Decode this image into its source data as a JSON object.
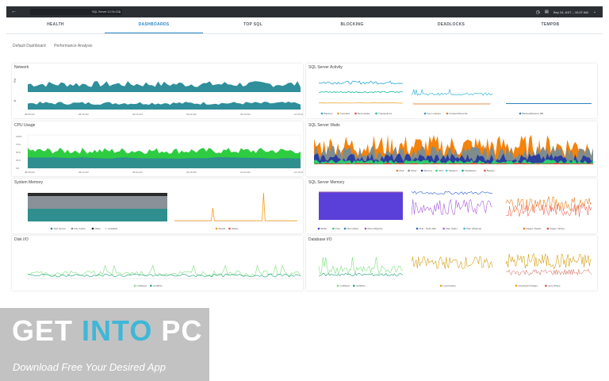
{
  "header": {
    "back_icon": "back-arrow-icon",
    "server_selector": "SQL Server 12.04.023",
    "date_range": "Sep 24, 8:07 – 10:07 AM",
    "time_icon": "clock-icon",
    "calendar_icon": "calendar-icon"
  },
  "tabs": [
    {
      "label": "HEALTH",
      "active": false
    },
    {
      "label": "DASHBOARDS",
      "active": true
    },
    {
      "label": "TOP SQL",
      "active": false
    },
    {
      "label": "BLOCKING",
      "active": false
    },
    {
      "label": "DEADLOCKS",
      "active": false
    },
    {
      "label": "TEMPDB",
      "active": false
    }
  ],
  "subnav": [
    "Default Dashboard",
    "Performance Analysis"
  ],
  "panels": {
    "network": {
      "title": "Network",
      "y_labels": [
        "Pkt",
        "B"
      ],
      "x_ticks": [
        "08:58 AM",
        "08:46 AM",
        "09:15 AM",
        "09:32 AM",
        "09:49 AM",
        "10:06 AM"
      ]
    },
    "sql_activity": {
      "title": "SQL Server Activity",
      "legends": [
        [
          {
            "name": "Batches",
            "color": "#2ea8d8"
          },
          {
            "name": "Compiles",
            "color": "#f39c12"
          },
          {
            "name": "Recompiles",
            "color": "#e74c3c"
          },
          {
            "name": "Transactions",
            "color": "#1abc9c"
          }
        ],
        [
          {
            "name": "Key Lookups",
            "color": "#3498db"
          },
          {
            "name": "Forward Records",
            "color": "#e67e22"
          }
        ],
        [
          {
            "name": "Backup/Restore MB",
            "color": "#2e86c1"
          }
        ]
      ]
    },
    "cpu": {
      "title": "CPU Usage",
      "y_ticks": [
        "100%",
        "75%",
        "50%",
        "25%",
        "0%"
      ],
      "x_ticks": [
        "08:58 AM",
        "09:14 AM",
        "09:30 AM",
        "09:46 AM",
        "10:02 AM",
        "10:18 AM"
      ]
    },
    "waits": {
      "title": "SQL Server Waits",
      "legend": [
        {
          "name": "Disk",
          "color": "#f5820a"
        },
        {
          "name": "Other",
          "color": "#7f8c8d"
        },
        {
          "name": "Memory",
          "color": "#2c3e9e"
        },
        {
          "name": "CPU",
          "color": "#2ecc71"
        },
        {
          "name": "Network",
          "color": "#48c9e3"
        },
        {
          "name": "Parallelism",
          "color": "#16a085"
        },
        {
          "name": "Backup",
          "color": "#e74c3c"
        }
      ]
    },
    "sys_memory": {
      "title": "System Memory",
      "legend": [
        {
          "name": "SQL Server",
          "color": "#2f8f8f"
        },
        {
          "name": "File Cache",
          "color": "#8a9198"
        },
        {
          "name": "Other",
          "color": "#2b2b2b"
        },
        {
          "name": "Available",
          "color": "#dcdcdc"
        }
      ],
      "legend2": [
        {
          "name": "Reads",
          "color": "#f39c12"
        },
        {
          "name": "Writes",
          "color": "#e74c3c"
        }
      ]
    },
    "sql_memory": {
      "title": "SQL Server Memory",
      "legend": [
        {
          "name": "Buffer",
          "color": "#5b3fd9"
        },
        {
          "name": "Free",
          "color": "#2ecc71"
        },
        {
          "name": "Plan (SQL)",
          "color": "#2980b9"
        },
        {
          "name": "Plan (Objects)",
          "color": "#9b59b6"
        }
      ],
      "legend2": [
        {
          "name": "PLE - Node 000",
          "color": "#2f5fd9"
        },
        {
          "name": "Plan (SQL)",
          "color": "#a75fd9"
        },
        {
          "name": "Plan (Objects)",
          "color": "#3fb4d8"
        }
      ],
      "legend3": [
        {
          "name": "Pages: Reads",
          "color": "#e67e22"
        },
        {
          "name": "Pages: Writes",
          "color": "#e74c3c"
        }
      ]
    },
    "disk_io": {
      "title": "Disk I/O",
      "legend": [
        {
          "name": "ms/Read",
          "color": "#7ee07e"
        },
        {
          "name": "ms/Write",
          "color": "#1fa37b"
        }
      ]
    },
    "database_io": {
      "title": "Database I/O",
      "legend": [
        {
          "name": "ms/Read",
          "color": "#7ee07e"
        },
        {
          "name": "ms/Write",
          "color": "#1fa37b"
        }
      ],
      "legend2": [
        {
          "name": "Log Flushes",
          "color": "#f39c12"
        }
      ],
      "legend3": [
        {
          "name": "Checkpoint Pages",
          "color": "#f39c12"
        },
        {
          "name": "Lazy Writes",
          "color": "#e74c3c"
        }
      ]
    }
  },
  "watermark": {
    "title_a": "GET ",
    "title_b": "INTO",
    "title_c": " PC",
    "subtitle": "Download Free Your Desired App"
  }
}
